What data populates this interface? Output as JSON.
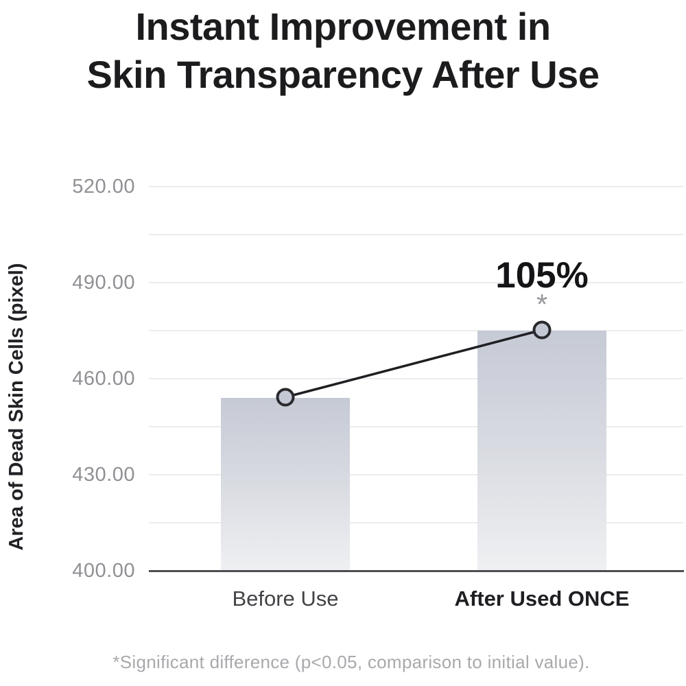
{
  "page": {
    "title_line1": "Instant Improvement in",
    "title_line2": "Skin Transparency After Use",
    "footnote": "*Significant difference (p<0.05, comparison to initial value)."
  },
  "colors": {
    "title": "#1c1c1e",
    "bar_gradient_top": "#c6cad5",
    "bar_gradient_bottom": "#eef0f2",
    "gridline": "#ececee",
    "axis_baseline": "#4e4e52",
    "tick_label": "#8f9094",
    "trend_line": "#1f1f23",
    "marker_fill": "#c4c8d4",
    "marker_stroke": "#2a2a2e",
    "footnote_text": "#a9a9ad",
    "asterisk": "#98989c"
  },
  "chart_data": {
    "type": "bar",
    "title": "Instant Improvement in Skin Transparency After Use",
    "ylabel": "Area of Dead Skin Cells (pixel)",
    "xlabel": "",
    "categories": [
      "Before Use",
      "After Used ONCE"
    ],
    "values": [
      454,
      475
    ],
    "emphasized_category": "After Used ONCE",
    "ylim": [
      400,
      520
    ],
    "ytick_interval": 30,
    "minor_gridline_interval": 15,
    "ytick_labels": [
      "400.00",
      "430.00",
      "460.00",
      "490.00",
      "520.00"
    ],
    "grid": true,
    "legend": "none",
    "overlay_line": {
      "type": "line",
      "marker": "circle",
      "points_follow_bar_tops": true
    },
    "annotation": {
      "text": "105%",
      "significance_marker": "*",
      "target_category": "After Used ONCE"
    },
    "footnote": "*Significant difference (p<0.05, comparison to initial value)."
  }
}
